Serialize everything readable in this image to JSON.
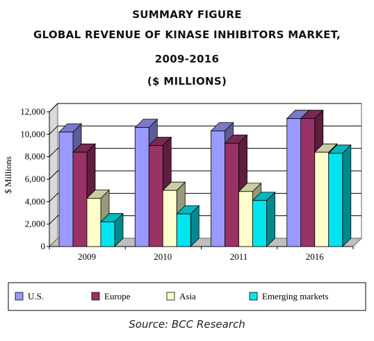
{
  "title_lines": [
    "SUMMARY FIGURE",
    "GLOBAL REVENUE OF KINASE INHIBITORS MARKET,",
    "2009-2016",
    "($ MILLIONS)"
  ],
  "source": "Source: BCC Research",
  "colors": {
    "us": "#9999ff",
    "europe": "#993366",
    "asia": "#ffffcc",
    "emerging": "#00e5ee"
  },
  "chart_data": {
    "type": "bar",
    "title": "GLOBAL REVENUE OF KINASE INHIBITORS MARKET, 2009-2016 ($ MILLIONS)",
    "xlabel": "",
    "ylabel": "$ Millions",
    "ylim": [
      0,
      12000
    ],
    "yticks": [
      0,
      2000,
      4000,
      6000,
      8000,
      10000,
      12000
    ],
    "ytick_labels": [
      "0",
      "2,000",
      "4,000",
      "6,000",
      "8,000",
      "10,000",
      "12,000"
    ],
    "categories": [
      "2009",
      "2010",
      "2011",
      "2016"
    ],
    "grid": true,
    "legend_position": "bottom",
    "series": [
      {
        "name": "U.S.",
        "color_key": "us",
        "values": [
          10200,
          10600,
          10300,
          11400
        ]
      },
      {
        "name": "Europe",
        "color_key": "europe",
        "values": [
          8400,
          9000,
          9200,
          11400
        ]
      },
      {
        "name": "Asia",
        "color_key": "asia",
        "values": [
          4300,
          5000,
          4900,
          8400
        ]
      },
      {
        "name": "Emerging markets",
        "color_key": "emerging",
        "values": [
          2200,
          2900,
          4100,
          8300
        ]
      }
    ]
  }
}
